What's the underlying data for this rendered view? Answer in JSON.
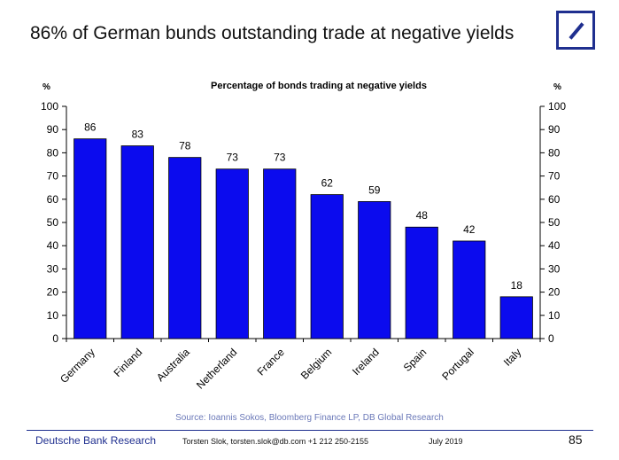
{
  "slide": {
    "title": "86% of German bunds outstanding trade at negative yields",
    "source": "Source: Ioannis Sokos, Bloomberg Finance LP,  DB Global Research",
    "footer": {
      "brand": "Deutsche Bank Research",
      "author": "Torsten Slok, torsten.slok@db.com  +1 212 250-2155",
      "date": "July 2019",
      "page": "85"
    }
  },
  "colors": {
    "bar": "#0b0bee",
    "bar_outline": "#000000",
    "accent": "#1f2f8f"
  },
  "chart_data": {
    "type": "bar",
    "title": "Percentage of bonds trading at negative yields",
    "ylabel_left": "%",
    "ylabel_right": "%",
    "categories": [
      "Germany",
      "Finland",
      "Australia",
      "Netherland",
      "France",
      "Belgium",
      "Ireland",
      "Spain",
      "Portugal",
      "Italy"
    ],
    "values": [
      86,
      83,
      78,
      73,
      73,
      62,
      59,
      48,
      42,
      18
    ],
    "ylim": [
      0,
      100
    ],
    "yticks": [
      0,
      10,
      20,
      30,
      40,
      50,
      60,
      70,
      80,
      90,
      100
    ],
    "data_labels": true,
    "grid": false,
    "legend": "none"
  }
}
